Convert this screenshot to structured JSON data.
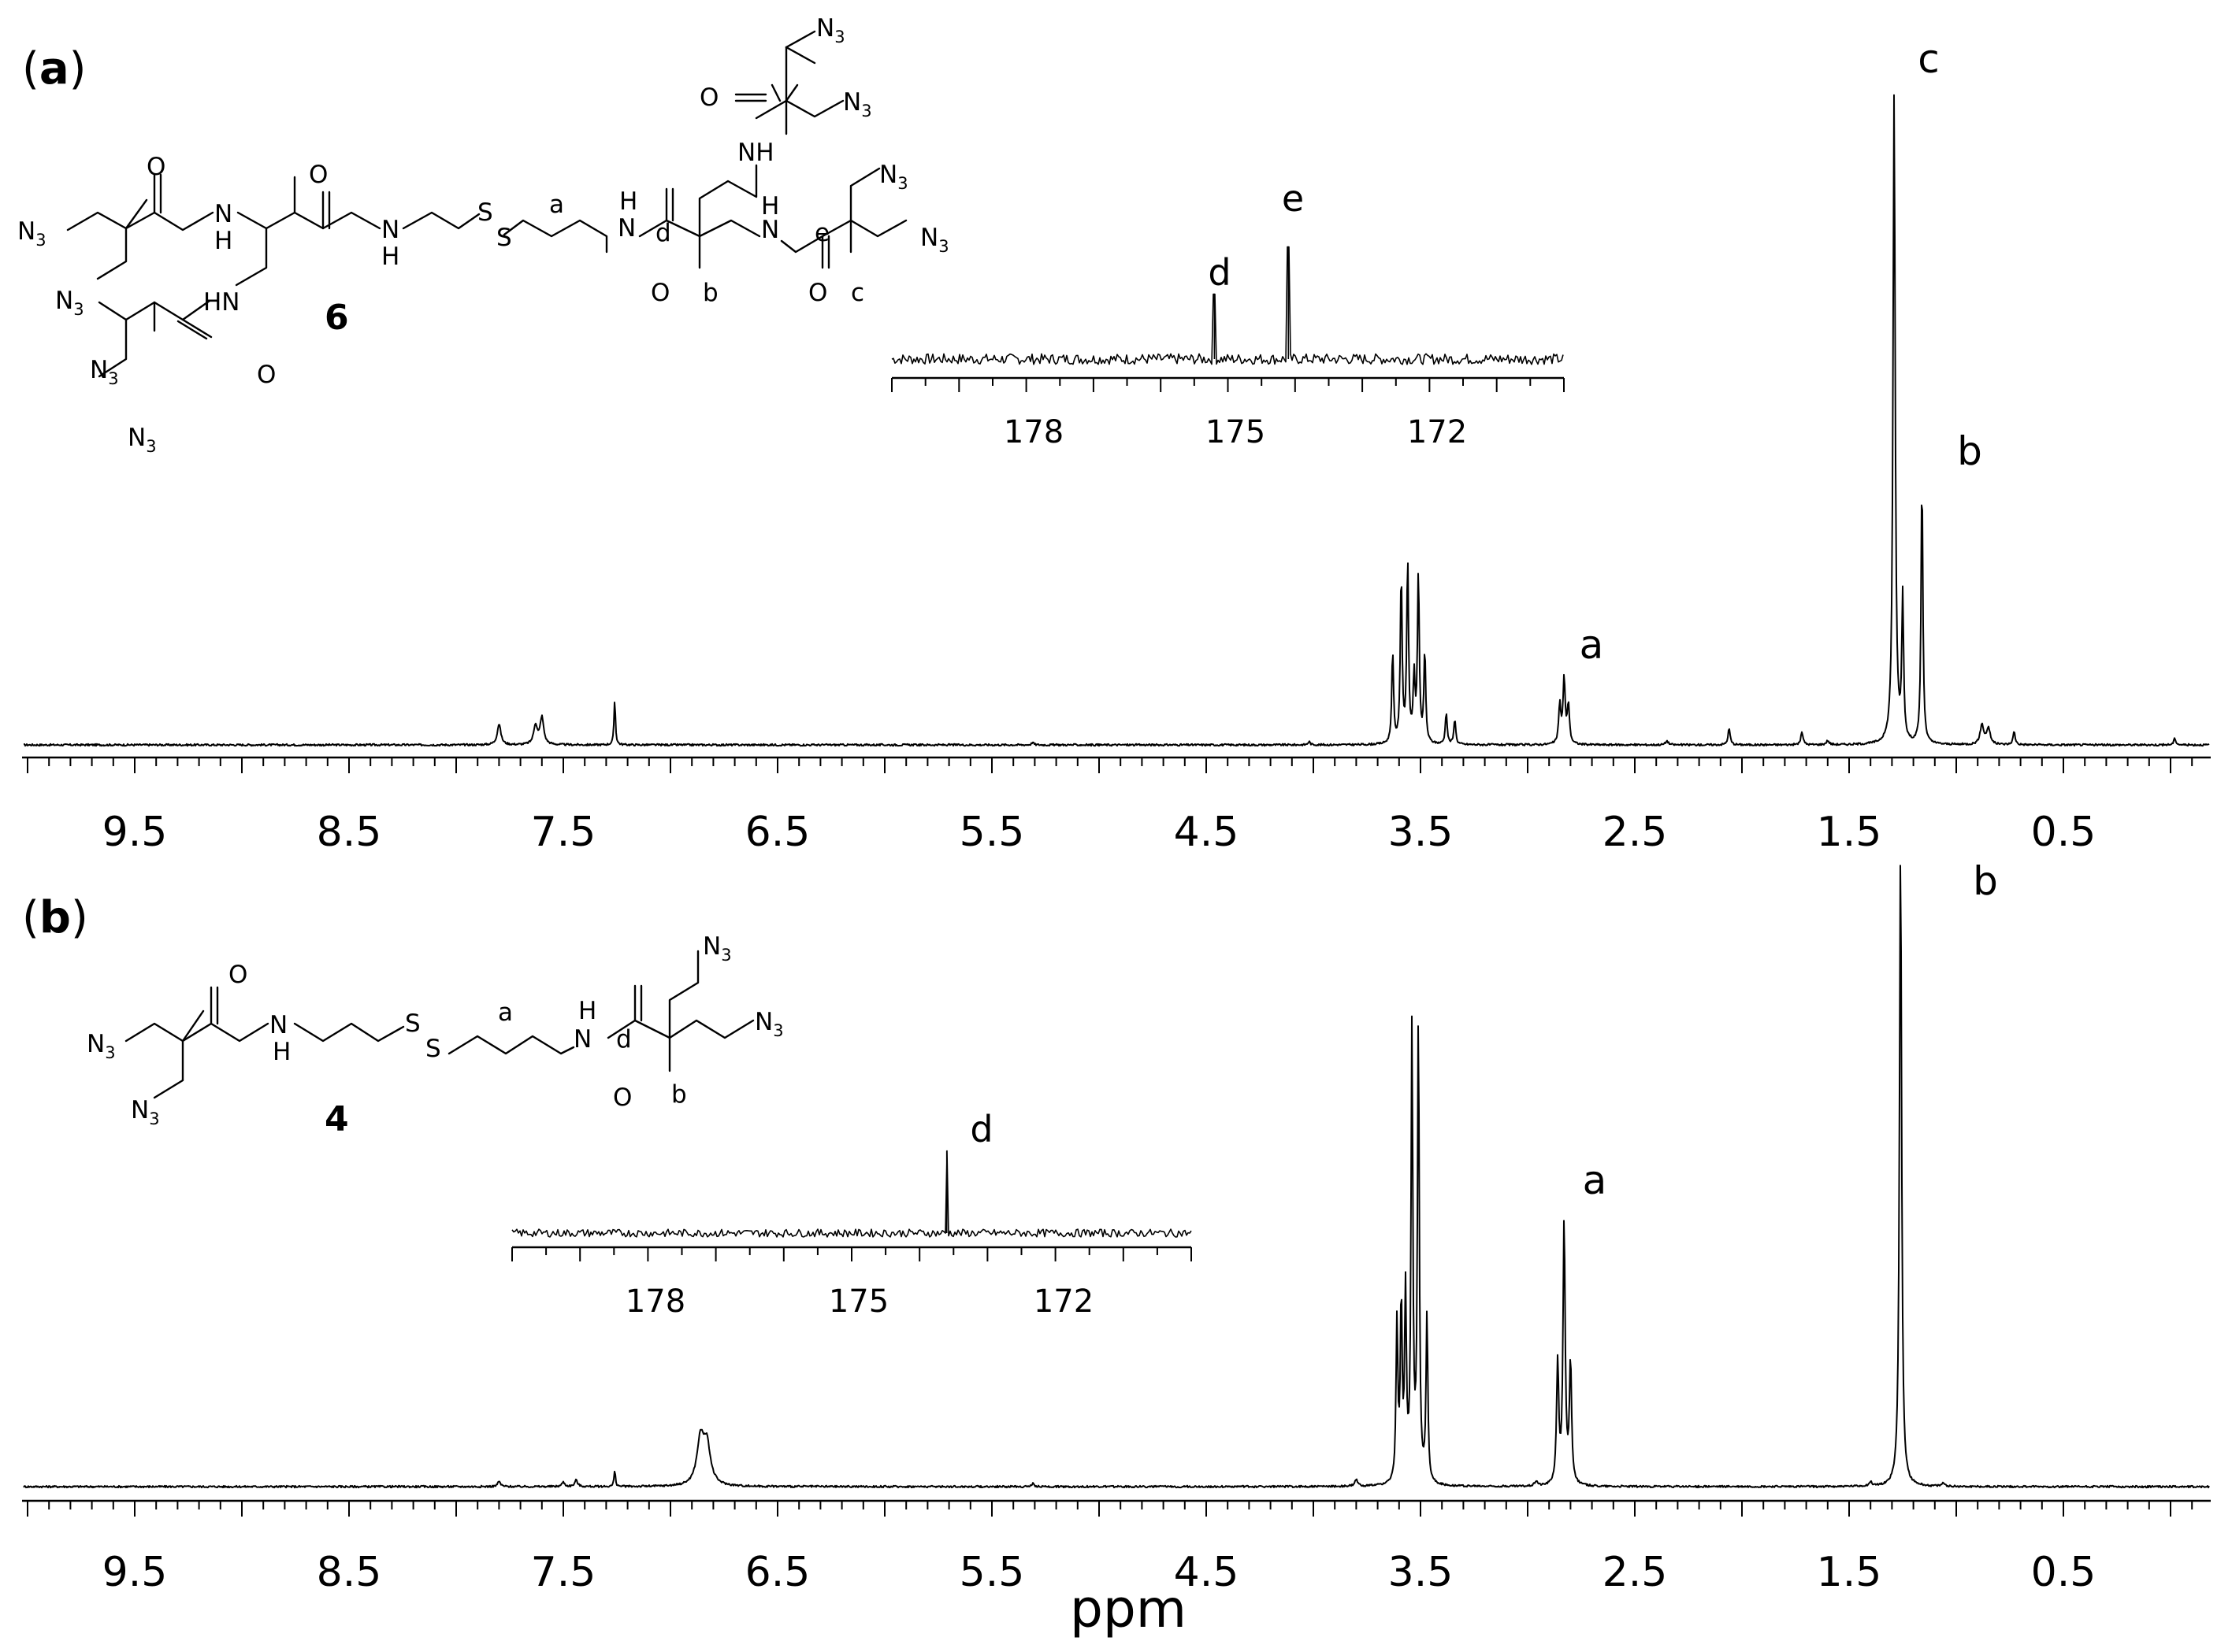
{
  "chart_data": [
    {
      "panel_label": "a",
      "type": "line",
      "x_reversed": true,
      "xlim": [
        10.0,
        -0.2
      ],
      "x_tick_labels": [
        "9.5",
        "8.5",
        "7.5",
        "6.5",
        "5.5",
        "4.5",
        "3.5",
        "2.5",
        "1.5",
        "0.5"
      ],
      "compound_number": "6",
      "compound_atom_labels": [
        "a",
        "b",
        "c",
        "d",
        "e"
      ],
      "series": [
        {
          "peaks": [
            {
              "x": 7.8,
              "h": 0.032,
              "w": 0.01,
              "label": ""
            },
            {
              "x": 7.63,
              "h": 0.03,
              "w": 0.01,
              "label": ""
            },
            {
              "x": 7.6,
              "h": 0.042,
              "w": 0.01,
              "label": ""
            },
            {
              "x": 7.26,
              "h": 0.07,
              "w": 0.004,
              "label": ""
            },
            {
              "x": 3.63,
              "h": 0.14,
              "w": 0.005,
              "label": ""
            },
            {
              "x": 3.59,
              "h": 0.26,
              "w": 0.005,
              "label": ""
            },
            {
              "x": 3.56,
              "h": 0.28,
              "w": 0.005,
              "label": ""
            },
            {
              "x": 3.53,
              "h": 0.1,
              "w": 0.005,
              "label": ""
            },
            {
              "x": 3.51,
              "h": 0.26,
              "w": 0.005,
              "label": ""
            },
            {
              "x": 3.48,
              "h": 0.14,
              "w": 0.005,
              "label": ""
            },
            {
              "x": 3.38,
              "h": 0.05,
              "w": 0.005,
              "label": ""
            },
            {
              "x": 3.34,
              "h": 0.04,
              "w": 0.005,
              "label": ""
            },
            {
              "x": 2.85,
              "h": 0.06,
              "w": 0.006,
              "label": ""
            },
            {
              "x": 2.83,
              "h": 0.1,
              "w": 0.006,
              "label": "a"
            },
            {
              "x": 2.81,
              "h": 0.06,
              "w": 0.006,
              "label": ""
            },
            {
              "x": 2.35,
              "h": 0.006,
              "w": 0.008,
              "label": ""
            },
            {
              "x": 2.06,
              "h": 0.025,
              "w": 0.006,
              "label": ""
            },
            {
              "x": 1.72,
              "h": 0.02,
              "w": 0.006,
              "label": ""
            },
            {
              "x": 1.6,
              "h": 0.006,
              "w": 0.008,
              "label": ""
            },
            {
              "x": 1.29,
              "h": 1.0,
              "w": 0.006,
              "label": "c"
            },
            {
              "x": 1.25,
              "h": 0.22,
              "w": 0.005,
              "label": ""
            },
            {
              "x": 1.16,
              "h": 0.41,
              "w": 0.005,
              "label": "b"
            },
            {
              "x": 0.88,
              "h": 0.03,
              "w": 0.01,
              "label": ""
            },
            {
              "x": 0.85,
              "h": 0.025,
              "w": 0.01,
              "label": ""
            },
            {
              "x": 0.73,
              "h": 0.02,
              "w": 0.006,
              "label": ""
            },
            {
              "x": 4.02,
              "h": 0.005,
              "w": 0.006,
              "label": ""
            },
            {
              "x": 5.31,
              "h": 0.004,
              "w": 0.006,
              "label": ""
            },
            {
              "x": -0.02,
              "h": 0.01,
              "w": 0.006,
              "label": ""
            }
          ]
        }
      ],
      "inset": {
        "type": "line",
        "x_reversed": true,
        "xlim": [
          180.0,
          170.0
        ],
        "x_tick_labels": [
          "178",
          "175",
          "172"
        ],
        "peaks": [
          {
            "x": 175.2,
            "h": 0.55,
            "label": "d"
          },
          {
            "x": 174.1,
            "h": 0.95,
            "label": "e"
          }
        ]
      }
    },
    {
      "panel_label": "b",
      "type": "line",
      "x_reversed": true,
      "xlim": [
        10.0,
        -0.2
      ],
      "x_tick_labels": [
        "9.5",
        "8.5",
        "7.5",
        "6.5",
        "5.5",
        "4.5",
        "3.5",
        "2.5",
        "1.5",
        "0.5"
      ],
      "compound_number": "4",
      "compound_atom_labels": [
        "a",
        "b",
        "d"
      ],
      "series": [
        {
          "peaks": [
            {
              "x": 7.8,
              "h": 0.008,
              "w": 0.008,
              "label": ""
            },
            {
              "x": 7.5,
              "h": 0.007,
              "w": 0.008,
              "label": ""
            },
            {
              "x": 7.44,
              "h": 0.01,
              "w": 0.008,
              "label": ""
            },
            {
              "x": 7.26,
              "h": 0.025,
              "w": 0.004,
              "label": ""
            },
            {
              "x": 6.86,
              "h": 0.07,
              "w": 0.02,
              "label": ""
            },
            {
              "x": 6.83,
              "h": 0.06,
              "w": 0.02,
              "label": ""
            },
            {
              "x": 5.31,
              "h": 0.005,
              "w": 0.006,
              "label": ""
            },
            {
              "x": 3.8,
              "h": 0.01,
              "w": 0.008,
              "label": ""
            },
            {
              "x": 3.61,
              "h": 0.25,
              "w": 0.005,
              "label": ""
            },
            {
              "x": 3.59,
              "h": 0.28,
              "w": 0.005,
              "label": ""
            },
            {
              "x": 3.57,
              "h": 0.29,
              "w": 0.005,
              "label": ""
            },
            {
              "x": 3.54,
              "h": 0.71,
              "w": 0.005,
              "label": ""
            },
            {
              "x": 3.51,
              "h": 0.72,
              "w": 0.005,
              "label": ""
            },
            {
              "x": 3.47,
              "h": 0.26,
              "w": 0.005,
              "label": ""
            },
            {
              "x": 2.96,
              "h": 0.008,
              "w": 0.008,
              "label": ""
            },
            {
              "x": 2.86,
              "h": 0.19,
              "w": 0.006,
              "label": ""
            },
            {
              "x": 2.83,
              "h": 0.41,
              "w": 0.006,
              "label": "a"
            },
            {
              "x": 2.8,
              "h": 0.19,
              "w": 0.006,
              "label": ""
            },
            {
              "x": 1.26,
              "h": 1.0,
              "w": 0.006,
              "label": "b"
            },
            {
              "x": 1.4,
              "h": 0.006,
              "w": 0.008,
              "label": ""
            },
            {
              "x": 1.06,
              "h": 0.005,
              "w": 0.008,
              "label": ""
            }
          ]
        }
      ],
      "inset": {
        "type": "line",
        "x_reversed": true,
        "xlim": [
          180.0,
          170.0
        ],
        "x_tick_labels": [
          "178",
          "175",
          "172"
        ],
        "peaks": [
          {
            "x": 173.6,
            "h": 0.95,
            "label": "d"
          }
        ]
      }
    }
  ],
  "xlabel": "ppm",
  "chem": {
    "n3": "N",
    "n3_sub": "3",
    "nh": "NH",
    "hn": "HN",
    "n": "N",
    "h": "H",
    "o": "O",
    "s": "S"
  }
}
